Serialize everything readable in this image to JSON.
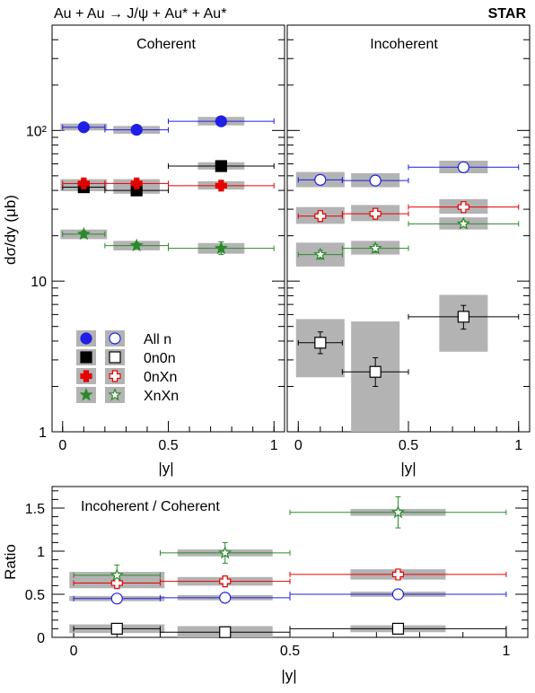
{
  "reaction": "Au + Au → J/ψ + Au* + Au*",
  "experiment": "STAR",
  "colors": {
    "All n": "#1f1fe6",
    "0n0n": "#000000",
    "0nXn": "#e60000",
    "XnXn": "#2a8a2a",
    "syst_box": "#b3b3b3"
  },
  "legend": {
    "items": [
      "All n",
      "0n0n",
      "0nXn",
      "XnXn"
    ],
    "marker_styles": {
      "All n": "circle",
      "0n0n": "square",
      "0nXn": "cross",
      "XnXn": "star"
    },
    "placement": "lower-left of coherent panel"
  },
  "chart_data": [
    {
      "type": "scatter",
      "title": "Coherent",
      "xlabel": "|y|",
      "ylabel": "dσ/dy (μb)",
      "yscale": "log",
      "xlim": [
        -0.05,
        1.05
      ],
      "ylim": [
        1,
        500
      ],
      "x_ticks": [
        "0",
        "0.5",
        "1"
      ],
      "y_ticks": [
        "1",
        "10",
        "10²"
      ],
      "markers": "filled",
      "series": [
        {
          "name": "All n",
          "points": [
            {
              "x": 0.1,
              "xerr": [
                0,
                0.2
              ],
              "y": 105,
              "yerr": [
                103,
                108
              ],
              "syst": [
                100,
                111
              ]
            },
            {
              "x": 0.35,
              "xerr": [
                0.2,
                0.5
              ],
              "y": 101,
              "yerr": [
                99,
                103
              ],
              "syst": [
                95,
                107
              ]
            },
            {
              "x": 0.75,
              "xerr": [
                0.5,
                1.0
              ],
              "y": 115,
              "yerr": [
                112,
                118
              ],
              "syst": [
                108,
                123
              ]
            }
          ]
        },
        {
          "name": "0n0n",
          "points": [
            {
              "x": 0.1,
              "xerr": [
                0,
                0.2
              ],
              "y": 42,
              "yerr": [
                41,
                43
              ],
              "syst": [
                39.5,
                45
              ]
            },
            {
              "x": 0.35,
              "xerr": [
                0.2,
                0.5
              ],
              "y": 40,
              "yerr": [
                39,
                41
              ],
              "syst": [
                38,
                42.5
              ]
            },
            {
              "x": 0.75,
              "xerr": [
                0.5,
                1.0
              ],
              "y": 58,
              "yerr": [
                56.5,
                59.5
              ],
              "syst": [
                55,
                61.5
              ]
            }
          ]
        },
        {
          "name": "0nXn",
          "points": [
            {
              "x": 0.1,
              "xerr": [
                0,
                0.2
              ],
              "y": 44.5,
              "yerr": [
                43.5,
                45.5
              ],
              "syst": [
                42,
                47.5
              ]
            },
            {
              "x": 0.35,
              "xerr": [
                0.2,
                0.5
              ],
              "y": 44.5,
              "yerr": [
                43.5,
                45.5
              ],
              "syst": [
                42,
                47.5
              ]
            },
            {
              "x": 0.75,
              "xerr": [
                0.5,
                1.0
              ],
              "y": 43,
              "yerr": [
                42,
                44
              ],
              "syst": [
                40.5,
                46
              ]
            }
          ]
        },
        {
          "name": "XnXn",
          "points": [
            {
              "x": 0.1,
              "xerr": [
                0,
                0.2
              ],
              "y": 20.5,
              "yerr": [
                19.5,
                21.5
              ],
              "syst": [
                19,
                22
              ]
            },
            {
              "x": 0.35,
              "xerr": [
                0.2,
                0.5
              ],
              "y": 17.2,
              "yerr": [
                16.5,
                18
              ],
              "syst": [
                16,
                18.5
              ]
            },
            {
              "x": 0.75,
              "xerr": [
                0.5,
                1.0
              ],
              "y": 16.5,
              "yerr": [
                15,
                18.2
              ],
              "syst": [
                15.2,
                17.9
              ]
            }
          ]
        }
      ]
    },
    {
      "type": "scatter",
      "title": "Incoherent",
      "xlabel": "|y|",
      "yscale": "log",
      "xlim": [
        -0.05,
        1.05
      ],
      "ylim": [
        1,
        500
      ],
      "x_ticks": [
        "0",
        "0.5",
        "1"
      ],
      "markers": "open",
      "series": [
        {
          "name": "All n",
          "points": [
            {
              "x": 0.1,
              "xerr": [
                0,
                0.2
              ],
              "y": 47,
              "yerr": [
                45,
                49
              ],
              "syst": [
                42,
                53
              ]
            },
            {
              "x": 0.35,
              "xerr": [
                0.2,
                0.5
              ],
              "y": 46.5,
              "yerr": [
                44.5,
                48.5
              ],
              "syst": [
                42,
                52
              ]
            },
            {
              "x": 0.75,
              "xerr": [
                0.5,
                1.0
              ],
              "y": 57,
              "yerr": [
                54.5,
                59.5
              ],
              "syst": [
                52,
                63
              ]
            }
          ]
        },
        {
          "name": "0n0n",
          "points": [
            {
              "x": 0.1,
              "xerr": [
                0,
                0.2
              ],
              "y": 3.9,
              "yerr": [
                3.3,
                4.6
              ],
              "syst": [
                2.3,
                5.6
              ]
            },
            {
              "x": 0.35,
              "xerr": [
                0.2,
                0.5
              ],
              "y": 2.5,
              "yerr": [
                2.0,
                3.1
              ],
              "syst": [
                1,
                5.4
              ]
            },
            {
              "x": 0.75,
              "xerr": [
                0.5,
                1.0
              ],
              "y": 5.8,
              "yerr": [
                4.8,
                6.9
              ],
              "syst": [
                3.4,
                8.1
              ]
            }
          ]
        },
        {
          "name": "0nXn",
          "points": [
            {
              "x": 0.1,
              "xerr": [
                0,
                0.2
              ],
              "y": 27,
              "yerr": [
                25.5,
                28.5
              ],
              "syst": [
                24,
                31
              ]
            },
            {
              "x": 0.35,
              "xerr": [
                0.2,
                0.5
              ],
              "y": 28,
              "yerr": [
                26.5,
                29.5
              ],
              "syst": [
                25,
                32
              ]
            },
            {
              "x": 0.75,
              "xerr": [
                0.5,
                1.0
              ],
              "y": 31,
              "yerr": [
                29.5,
                33
              ],
              "syst": [
                28,
                35
              ]
            }
          ]
        },
        {
          "name": "XnXn",
          "points": [
            {
              "x": 0.1,
              "xerr": [
                0,
                0.2
              ],
              "y": 15,
              "yerr": [
                14,
                16
              ],
              "syst": [
                12.5,
                18
              ]
            },
            {
              "x": 0.35,
              "xerr": [
                0.2,
                0.5
              ],
              "y": 16.5,
              "yerr": [
                15.5,
                17.5
              ],
              "syst": [
                15,
                18.5
              ]
            },
            {
              "x": 0.75,
              "xerr": [
                0.5,
                1.0
              ],
              "y": 24,
              "yerr": [
                23,
                25
              ],
              "syst": [
                22,
                26.5
              ]
            }
          ]
        }
      ]
    },
    {
      "type": "scatter",
      "title": "Incoherent / Coherent",
      "xlabel": "|y|",
      "ylabel": "Ratio",
      "yscale": "linear",
      "xlim": [
        -0.05,
        1.05
      ],
      "ylim": [
        0,
        1.75
      ],
      "x_ticks": [
        "0",
        "0.5",
        "1"
      ],
      "y_ticks": [
        "0",
        "0.5",
        "1",
        "1.5"
      ],
      "markers": "open",
      "series": [
        {
          "name": "All n",
          "points": [
            {
              "x": 0.1,
              "xerr": [
                0,
                0.2
              ],
              "y": 0.45,
              "yerr": [
                0.43,
                0.47
              ],
              "syst": [
                0.42,
                0.48
              ]
            },
            {
              "x": 0.35,
              "xerr": [
                0.2,
                0.5
              ],
              "y": 0.46,
              "yerr": [
                0.44,
                0.48
              ],
              "syst": [
                0.43,
                0.49
              ]
            },
            {
              "x": 0.75,
              "xerr": [
                0.5,
                1.0
              ],
              "y": 0.5,
              "yerr": [
                0.48,
                0.52
              ],
              "syst": [
                0.47,
                0.53
              ]
            }
          ]
        },
        {
          "name": "0n0n",
          "points": [
            {
              "x": 0.1,
              "xerr": [
                0,
                0.2
              ],
              "y": 0.1,
              "yerr": [
                0.08,
                0.12
              ],
              "syst": [
                0.05,
                0.15
              ]
            },
            {
              "x": 0.35,
              "xerr": [
                0.2,
                0.5
              ],
              "y": 0.06,
              "yerr": [
                0.04,
                0.08
              ],
              "syst": [
                0.0,
                0.13
              ]
            },
            {
              "x": 0.75,
              "xerr": [
                0.5,
                1.0
              ],
              "y": 0.1,
              "yerr": [
                0.08,
                0.12
              ],
              "syst": [
                0.06,
                0.14
              ]
            }
          ]
        },
        {
          "name": "0nXn",
          "points": [
            {
              "x": 0.1,
              "xerr": [
                0,
                0.2
              ],
              "y": 0.63,
              "yerr": [
                0.58,
                0.68
              ],
              "syst": [
                0.57,
                0.69
              ]
            },
            {
              "x": 0.35,
              "xerr": [
                0.2,
                0.5
              ],
              "y": 0.65,
              "yerr": [
                0.6,
                0.7
              ],
              "syst": [
                0.6,
                0.7
              ]
            },
            {
              "x": 0.75,
              "xerr": [
                0.5,
                1.0
              ],
              "y": 0.73,
              "yerr": [
                0.68,
                0.78
              ],
              "syst": [
                0.67,
                0.79
              ]
            }
          ]
        },
        {
          "name": "XnXn",
          "points": [
            {
              "x": 0.1,
              "xerr": [
                0,
                0.2
              ],
              "y": 0.72,
              "yerr": [
                0.6,
                0.84
              ],
              "syst": [
                0.68,
                0.76
              ]
            },
            {
              "x": 0.35,
              "xerr": [
                0.2,
                0.5
              ],
              "y": 0.98,
              "yerr": [
                0.86,
                1.1
              ],
              "syst": [
                0.94,
                1.02
              ]
            },
            {
              "x": 0.75,
              "xerr": [
                0.5,
                1.0
              ],
              "y": 1.45,
              "yerr": [
                1.27,
                1.63
              ],
              "syst": [
                1.41,
                1.49
              ]
            }
          ]
        }
      ]
    }
  ]
}
